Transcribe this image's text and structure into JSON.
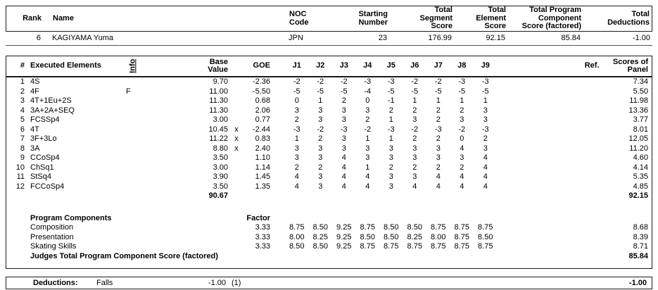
{
  "top": {
    "headers": {
      "rank": "Rank",
      "name": "Name",
      "noc": "NOC\nCode",
      "starting": "Starting\nNumber",
      "segment": "Total\nSegment\nScore",
      "element": "Total\nElement\nScore",
      "component": "Total Program\nComponent\nScore (factored)",
      "deductions": "Total\nDeductions"
    },
    "athlete": {
      "rank": "6",
      "name": "KAGIYAMA Yuma",
      "noc": "JPN",
      "starting": "23",
      "segment": "176.99",
      "element": "92.15",
      "component": "85.84",
      "deductions": "-1.00"
    }
  },
  "elements_table": {
    "headers": {
      "num": "#",
      "executed": "Executed Elements",
      "info": "Info",
      "base": "Base\nValue",
      "goe": "GOE",
      "ref": "Ref.",
      "panel": "Scores of\nPanel"
    },
    "judges": [
      "J1",
      "J2",
      "J3",
      "J4",
      "J5",
      "J6",
      "J7",
      "J8",
      "J9"
    ],
    "rows": [
      {
        "num": "1",
        "name": "4S",
        "info": "",
        "base": "9.70",
        "x": "",
        "goe": "-2.36",
        "scores": [
          "-2",
          "-2",
          "-2",
          "-3",
          "-3",
          "-2",
          "-2",
          "-3",
          "-3"
        ],
        "panel": "7.34"
      },
      {
        "num": "2",
        "name": "4F",
        "info": "F",
        "base": "11.00",
        "x": "",
        "goe": "-5.50",
        "scores": [
          "-5",
          "-5",
          "-5",
          "-4",
          "-5",
          "-5",
          "-5",
          "-5",
          "-5"
        ],
        "panel": "5.50"
      },
      {
        "num": "3",
        "name": "4T+1Eu+2S",
        "info": "",
        "base": "11.30",
        "x": "",
        "goe": "0.68",
        "scores": [
          "0",
          "1",
          "2",
          "0",
          "-1",
          "1",
          "1",
          "1",
          "1"
        ],
        "panel": "11.98"
      },
      {
        "num": "4",
        "name": "3A+2A+SEQ",
        "info": "",
        "base": "11.30",
        "x": "",
        "goe": "2.06",
        "scores": [
          "3",
          "3",
          "3",
          "3",
          "2",
          "2",
          "2",
          "2",
          "3"
        ],
        "panel": "13.36"
      },
      {
        "num": "5",
        "name": "FCSSp4",
        "info": "",
        "base": "3.00",
        "x": "",
        "goe": "0.77",
        "scores": [
          "2",
          "3",
          "3",
          "2",
          "1",
          "3",
          "2",
          "3",
          "3"
        ],
        "panel": "3.77"
      },
      {
        "num": "6",
        "name": "4T",
        "info": "",
        "base": "10.45",
        "x": "x",
        "goe": "-2.44",
        "scores": [
          "-3",
          "-2",
          "-3",
          "-2",
          "-3",
          "-2",
          "-3",
          "-2",
          "-3"
        ],
        "panel": "8.01"
      },
      {
        "num": "7",
        "name": "3F+3Lo",
        "info": "",
        "base": "11.22",
        "x": "x",
        "goe": "0.83",
        "scores": [
          "1",
          "2",
          "3",
          "1",
          "1",
          "2",
          "2",
          "0",
          "2"
        ],
        "panel": "12.05"
      },
      {
        "num": "8",
        "name": "3A",
        "info": "",
        "base": "8.80",
        "x": "x",
        "goe": "2.40",
        "scores": [
          "3",
          "3",
          "3",
          "3",
          "3",
          "3",
          "3",
          "4",
          "3"
        ],
        "panel": "11.20"
      },
      {
        "num": "9",
        "name": "CCoSp4",
        "info": "",
        "base": "3.50",
        "x": "",
        "goe": "1.10",
        "scores": [
          "3",
          "3",
          "4",
          "3",
          "3",
          "3",
          "3",
          "3",
          "4"
        ],
        "panel": "4.60"
      },
      {
        "num": "10",
        "name": "ChSq1",
        "info": "",
        "base": "3.00",
        "x": "",
        "goe": "1.14",
        "scores": [
          "2",
          "2",
          "4",
          "1",
          "2",
          "2",
          "2",
          "2",
          "4"
        ],
        "panel": "4.14"
      },
      {
        "num": "11",
        "name": "StSq4",
        "info": "",
        "base": "3.90",
        "x": "",
        "goe": "1.45",
        "scores": [
          "4",
          "3",
          "4",
          "4",
          "3",
          "3",
          "4",
          "4",
          "4"
        ],
        "panel": "5.35"
      },
      {
        "num": "12",
        "name": "FCCoSp4",
        "info": "",
        "base": "3.50",
        "x": "",
        "goe": "1.35",
        "scores": [
          "4",
          "3",
          "4",
          "4",
          "3",
          "4",
          "4",
          "4",
          "4"
        ],
        "panel": "4.85"
      }
    ],
    "totals": {
      "base": "90.67",
      "panel": "92.15"
    }
  },
  "components": {
    "title": "Program Components",
    "factor_label": "Factor",
    "rows": [
      {
        "name": "Composition",
        "factor": "3.33",
        "scores": [
          "8.75",
          "8.50",
          "9.25",
          "8.75",
          "8.50",
          "8.50",
          "8.75",
          "8.75",
          "8.75"
        ],
        "panel": "8.68"
      },
      {
        "name": "Presentation",
        "factor": "3.33",
        "scores": [
          "8.00",
          "8.25",
          "9.25",
          "8.50",
          "8.50",
          "8.25",
          "8.00",
          "8.75",
          "8.50"
        ],
        "panel": "8.39"
      },
      {
        "name": "Skating Skills",
        "factor": "3.33",
        "scores": [
          "8.50",
          "8.50",
          "9.25",
          "8.75",
          "8.75",
          "8.75",
          "8.75",
          "8.75",
          "8.75"
        ],
        "panel": "8.71"
      }
    ],
    "total_label": "Judges Total Program Component Score (factored)",
    "total": "85.84"
  },
  "deductions": {
    "label": "Deductions:",
    "reason": "Falls",
    "value": "-1.00",
    "count": "(1)",
    "total": "-1.00"
  }
}
